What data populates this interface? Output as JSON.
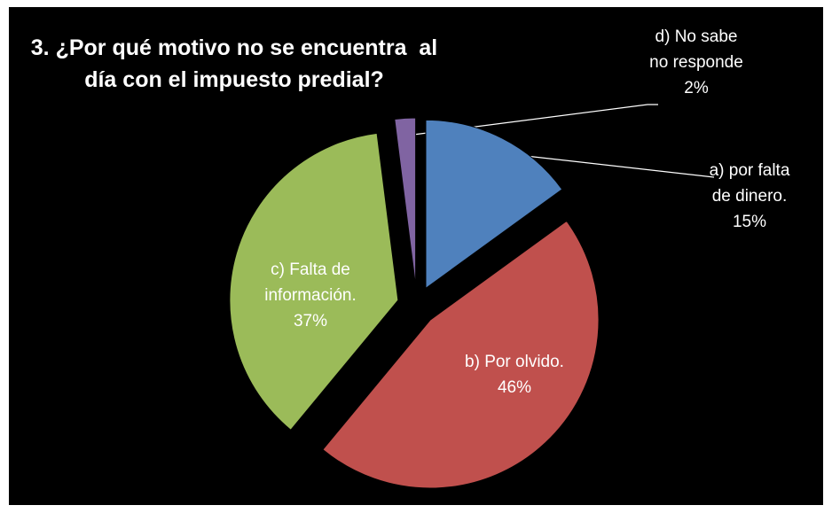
{
  "chart_data": {
    "type": "pie",
    "title": "3. ¿Por qué motivo no se encuentra  al día con el impuesto predial?",
    "categories": [
      "a) por falta de dinero.",
      "b) Por olvido.",
      "c) Falta de información.",
      "d) No sabe no responde"
    ],
    "values": [
      15,
      46,
      37,
      2
    ],
    "value_labels": [
      "15%",
      "46%",
      "37%",
      "2%"
    ],
    "colors": [
      "#4f81bd",
      "#c0504d",
      "#9bbb59",
      "#8064a2"
    ]
  }
}
